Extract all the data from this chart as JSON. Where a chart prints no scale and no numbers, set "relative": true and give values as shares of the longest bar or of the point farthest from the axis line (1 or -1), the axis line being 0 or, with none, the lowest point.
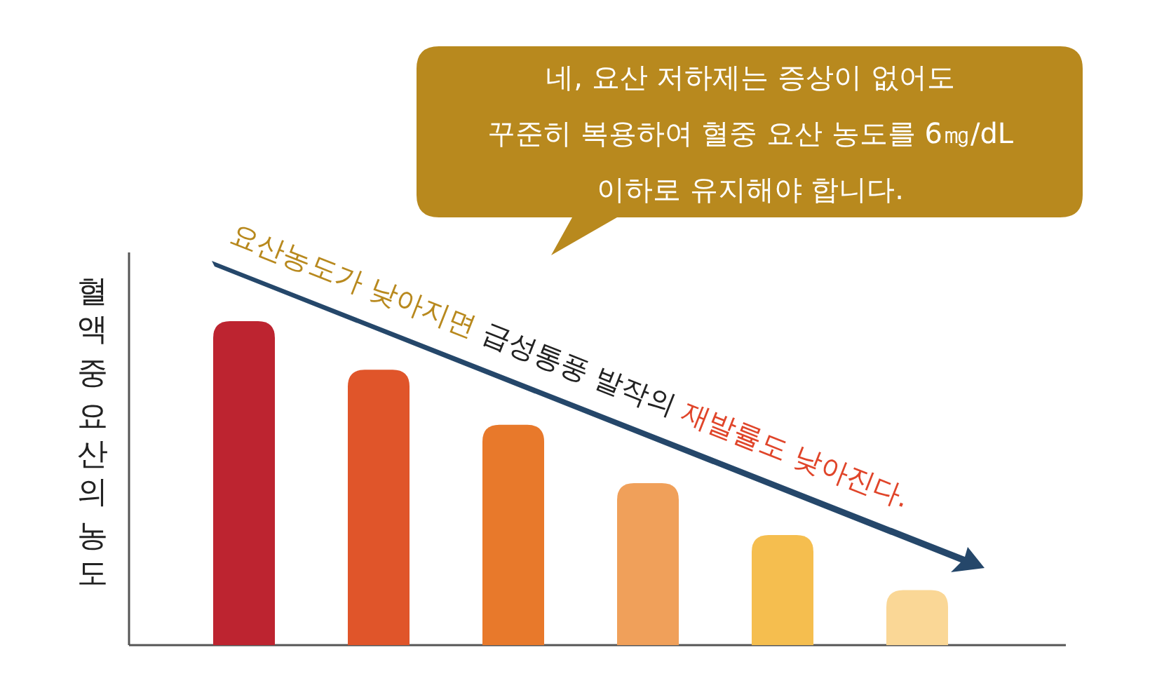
{
  "chart_data": {
    "type": "bar",
    "relative": true,
    "ylabel": "혈액 중 요산의 농도",
    "categories": [
      null,
      null,
      null,
      null,
      null,
      null
    ],
    "values": [
      1,
      0.85,
      0.68,
      0.5,
      0.34,
      0.17
    ],
    "colors": [
      "#bd2430",
      "#e0552a",
      "#e8792b",
      "#f0a05a",
      "#f5be4f",
      "#fad796"
    ],
    "annotations": [
      "네, 요산 저하제는 증상이 없어도\n꾸준히 복용하여 혈중 요산 농도를 6㎎/dL\n이하로 유지해야 합니다.",
      "요산농도가 낮아지면",
      "급성통풍 발작의",
      "재발률도 낮아진다."
    ]
  }
}
